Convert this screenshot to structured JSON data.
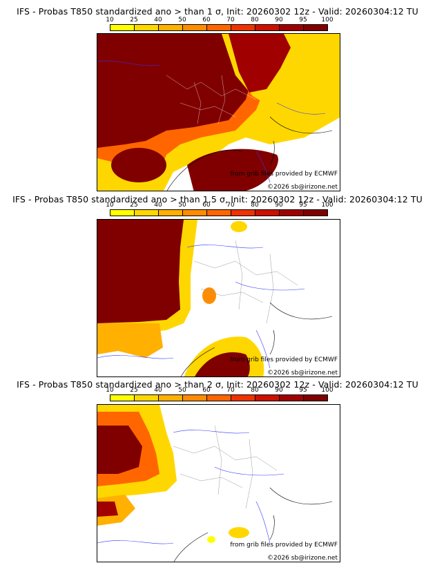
{
  "colorbar": {
    "labels": [
      "10",
      "25",
      "40",
      "50",
      "60",
      "70",
      "80",
      "90",
      "95",
      "100"
    ],
    "colors": [
      "#ffff00",
      "#ffd700",
      "#ffb000",
      "#ff8c00",
      "#ff6600",
      "#ee3300",
      "#cc1100",
      "#a00000",
      "#800000"
    ]
  },
  "panels": [
    {
      "title": "IFS - Probas T850  standardized ano > than 1 σ, Init: 20260302 12z - Valid: 20260304:12 TU",
      "credit_source": "from grib files provided by ECMWF",
      "credit_copyright": "©2026 sb@irizone.net"
    },
    {
      "title": "IFS - Probas T850  standardized ano > than 1.5 σ, Init: 20260302 12z - Valid: 20260304:12 TU",
      "credit_source": "from grib files provided by ECMWF",
      "credit_copyright": "©2026 sb@irizone.net"
    },
    {
      "title": "IFS - Probas T850  standardized ano > than 2 σ, Init: 20260302 12z - Valid: 20260304:12 TU",
      "credit_source": "from grib files provided by ECMWF",
      "credit_copyright": "©2026 sb@irizone.net"
    }
  ]
}
